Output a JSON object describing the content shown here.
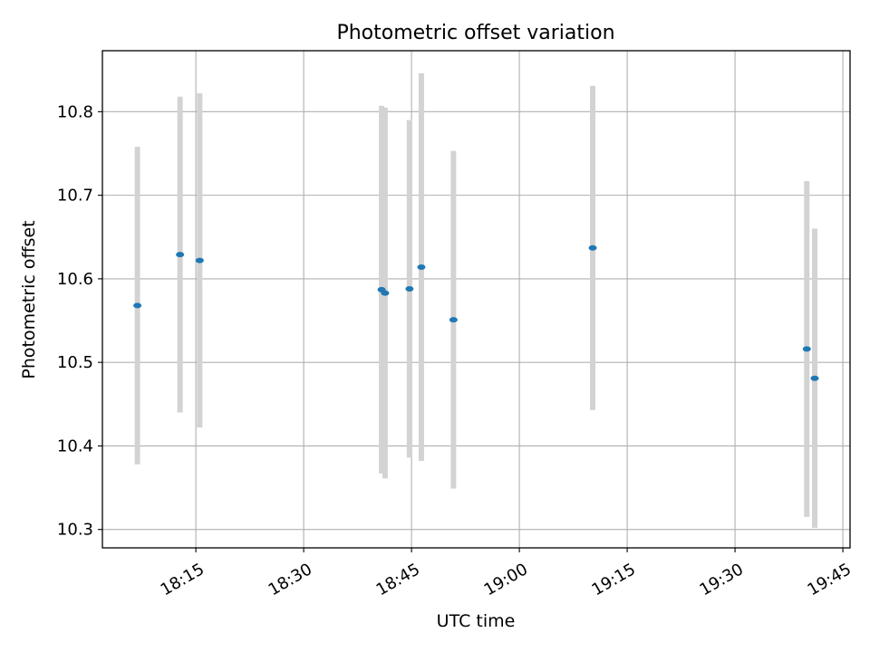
{
  "chart_data": {
    "type": "scatter",
    "title": "Photometric offset variation",
    "xlabel": "UTC time",
    "ylabel": "Photometric offset",
    "x_ticks": [
      "18:15",
      "18:30",
      "18:45",
      "19:00",
      "19:15",
      "19:30",
      "19:45"
    ],
    "x_tick_values": [
      "18:15",
      "18:30",
      "18:45",
      "19:00",
      "19:15",
      "19:30",
      "19:45"
    ],
    "y_ticks": [
      "10.3",
      "10.4",
      "10.5",
      "10.6",
      "10.7",
      "10.8"
    ],
    "y_tick_values": [
      10.3,
      10.4,
      10.5,
      10.6,
      10.7,
      10.8
    ],
    "xlim": [
      "18:02:00",
      "19:46:00"
    ],
    "ylim": [
      10.278,
      10.873
    ],
    "grid": true,
    "colors": {
      "marker": "#1f77b4",
      "errorbar": "#d3d3d3",
      "grid": "#b0b0b0"
    },
    "points": [
      {
        "time": "18:06:52",
        "y": 10.568,
        "err": 0.19
      },
      {
        "time": "18:12:48",
        "y": 10.629,
        "err": 0.189
      },
      {
        "time": "18:15:32",
        "y": 10.622,
        "err": 0.2
      },
      {
        "time": "18:40:50",
        "y": 10.587,
        "err": 0.22
      },
      {
        "time": "18:41:19",
        "y": 10.583,
        "err": 0.222
      },
      {
        "time": "18:44:43",
        "y": 10.588,
        "err": 0.202
      },
      {
        "time": "18:46:22",
        "y": 10.614,
        "err": 0.232
      },
      {
        "time": "18:50:50",
        "y": 10.551,
        "err": 0.202
      },
      {
        "time": "19:10:12",
        "y": 10.637,
        "err": 0.194
      },
      {
        "time": "19:39:59",
        "y": 10.516,
        "err": 0.201
      },
      {
        "time": "19:41:05",
        "y": 10.481,
        "err": 0.179
      }
    ]
  }
}
